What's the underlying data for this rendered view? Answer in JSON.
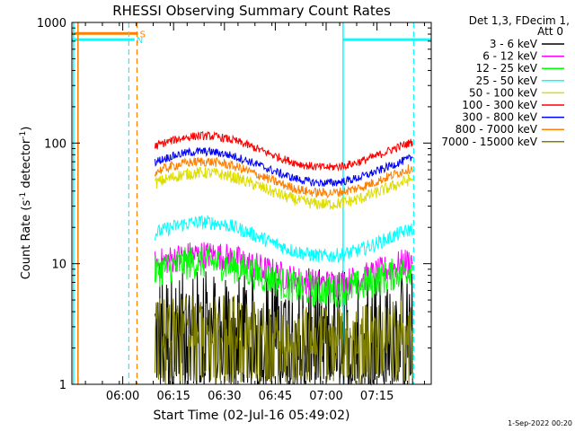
{
  "chart_data": {
    "type": "line",
    "title": "RHESSI Observing Summary Count Rates",
    "xlabel": "Start Time (02-Jul-16 05:49:02)",
    "ylabel_main": "Count Rate (s",
    "ylabel_sup1": "-1",
    "ylabel_mid": " detector",
    "ylabel_sup2": "-1",
    "ylabel_end": ")",
    "footer": "1-Sep-2022 00:20",
    "legend_header": [
      "Det 1,3, FDecim 1,",
      "Att 0"
    ],
    "y_scale": "log",
    "ylim": [
      1,
      1000
    ],
    "y_ticks": [
      {
        "v": 1,
        "label": "1"
      },
      {
        "v": 10,
        "label": "10"
      },
      {
        "v": 100,
        "label": "100"
      },
      {
        "v": 1000,
        "label": "1000"
      }
    ],
    "x_range_min": [
      -4,
      102
    ],
    "x_ticks": [
      {
        "t": 11,
        "label": "06:00"
      },
      {
        "t": 26,
        "label": "06:15"
      },
      {
        "t": 41,
        "label": "06:30"
      },
      {
        "t": 56,
        "label": "06:45"
      },
      {
        "t": 71,
        "label": "07:00"
      },
      {
        "t": 86,
        "label": "07:15"
      }
    ],
    "data_start_min": 20.5,
    "data_end_min": 96.5,
    "series": [
      {
        "name": "3 - 6 keV",
        "color": "#000000",
        "base": 2.6,
        "amp": 0.0,
        "noise": 0.55,
        "spiky": true
      },
      {
        "name": "6 - 12 keV",
        "color": "#ff00ff",
        "base": 9.0,
        "amp": 0.12,
        "noise": 0.12
      },
      {
        "name": "12 - 25 keV",
        "color": "#00ff00",
        "base": 7.8,
        "amp": 0.12,
        "noise": 0.14
      },
      {
        "name": "25 - 50 keV",
        "color": "#00ffff",
        "base": 16.0,
        "amp": 0.14,
        "noise": 0.06
      },
      {
        "name": "50 - 100 keV",
        "color": "#dddd00",
        "base": 42.0,
        "amp": 0.13,
        "noise": 0.05
      },
      {
        "name": "100 - 300 keV",
        "color": "#ff0000",
        "base": 85.0,
        "amp": 0.13,
        "noise": 0.035
      },
      {
        "name": "300 - 800 keV",
        "color": "#0000ff",
        "base": 63.0,
        "amp": 0.13,
        "noise": 0.035
      },
      {
        "name": "800 - 7000 keV",
        "color": "#ff8000",
        "base": 52.0,
        "amp": 0.13,
        "noise": 0.04
      },
      {
        "name": "7000 - 15000 keV",
        "color": "#808000",
        "base": 3.0,
        "amp": 0.05,
        "noise": 0.22,
        "spiky": true
      }
    ],
    "flags": [
      {
        "label": "S",
        "color": "#ff8000",
        "y": 810,
        "from": -4,
        "to": 15.5
      },
      {
        "label": "N",
        "color": "#00ffff",
        "y": 720,
        "from": -4,
        "to": 14.5
      },
      {
        "label": "",
        "color": "#00ffff",
        "y": 720,
        "from": 76,
        "to": 102
      }
    ],
    "vlines_solid": [
      {
        "t": -3.5,
        "color": "#00ffff"
      },
      {
        "t": -2.2,
        "color": "#ff8000"
      },
      {
        "t": 76,
        "color": "#00ffff"
      }
    ],
    "vlines_dashed": [
      {
        "t": 12.8,
        "color": "#00ffff"
      },
      {
        "t": 15.2,
        "color": "#ff8000"
      },
      {
        "t": 96.8,
        "color": "#00ffff"
      }
    ]
  }
}
